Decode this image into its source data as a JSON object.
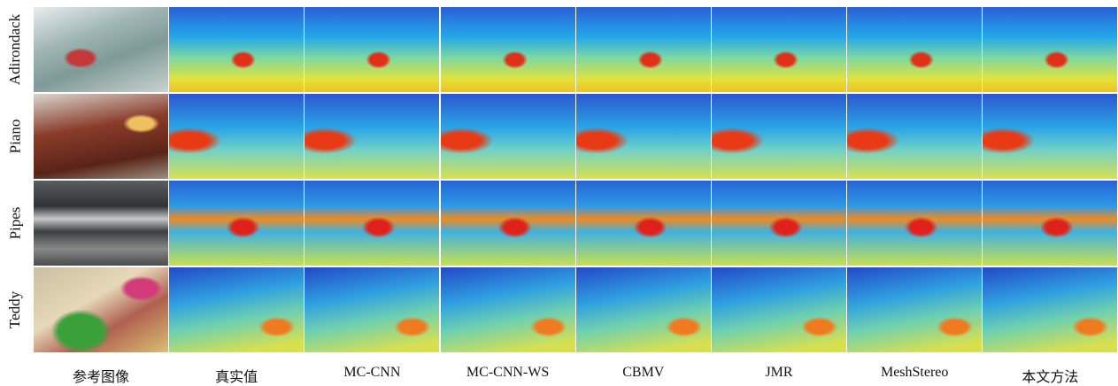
{
  "rows": [
    "Adirondack",
    "Piano",
    "Pipes",
    "Teddy"
  ],
  "columns": [
    "参考图像",
    "真实值",
    "MC-CNN",
    "MC-CNN-WS",
    "CBMV",
    "JMR",
    "MeshStereo",
    "本文方法"
  ]
}
